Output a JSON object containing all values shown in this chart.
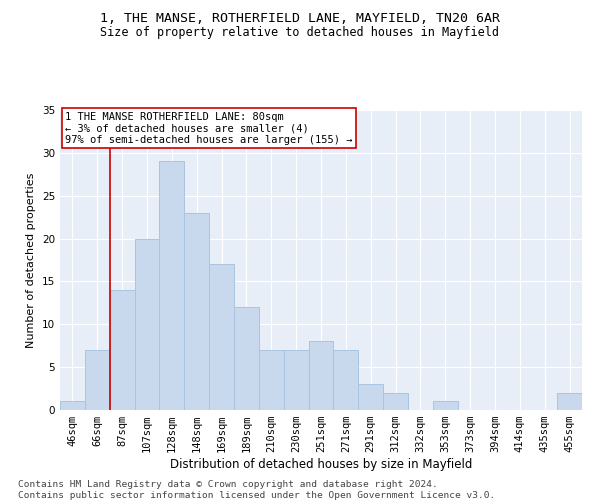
{
  "title1": "1, THE MANSE, ROTHERFIELD LANE, MAYFIELD, TN20 6AR",
  "title2": "Size of property relative to detached houses in Mayfield",
  "xlabel": "Distribution of detached houses by size in Mayfield",
  "ylabel": "Number of detached properties",
  "categories": [
    "46sqm",
    "66sqm",
    "87sqm",
    "107sqm",
    "128sqm",
    "148sqm",
    "169sqm",
    "189sqm",
    "210sqm",
    "230sqm",
    "251sqm",
    "271sqm",
    "291sqm",
    "312sqm",
    "332sqm",
    "353sqm",
    "373sqm",
    "394sqm",
    "414sqm",
    "435sqm",
    "455sqm"
  ],
  "values": [
    1,
    7,
    14,
    20,
    29,
    23,
    17,
    12,
    7,
    7,
    8,
    7,
    3,
    2,
    0,
    1,
    0,
    0,
    0,
    0,
    2
  ],
  "bar_color": "#c9d9ed",
  "bar_edgecolor": "#aac4df",
  "bar_linewidth": 0.7,
  "vline_x": 1.5,
  "vline_color": "#cc0000",
  "annotation_text": "1 THE MANSE ROTHERFIELD LANE: 80sqm\n← 3% of detached houses are smaller (4)\n97% of semi-detached houses are larger (155) →",
  "annotation_fontsize": 7.5,
  "annotation_box_color": "white",
  "annotation_box_edgecolor": "#cc0000",
  "ylim": [
    0,
    35
  ],
  "yticks": [
    0,
    5,
    10,
    15,
    20,
    25,
    30,
    35
  ],
  "plot_bg_color": "#e8eef7",
  "footer": "Contains HM Land Registry data © Crown copyright and database right 2024.\nContains public sector information licensed under the Open Government Licence v3.0.",
  "title1_fontsize": 9.5,
  "title2_fontsize": 8.5,
  "xlabel_fontsize": 8.5,
  "ylabel_fontsize": 8.0,
  "footer_fontsize": 6.8,
  "tick_fontsize": 7.5
}
